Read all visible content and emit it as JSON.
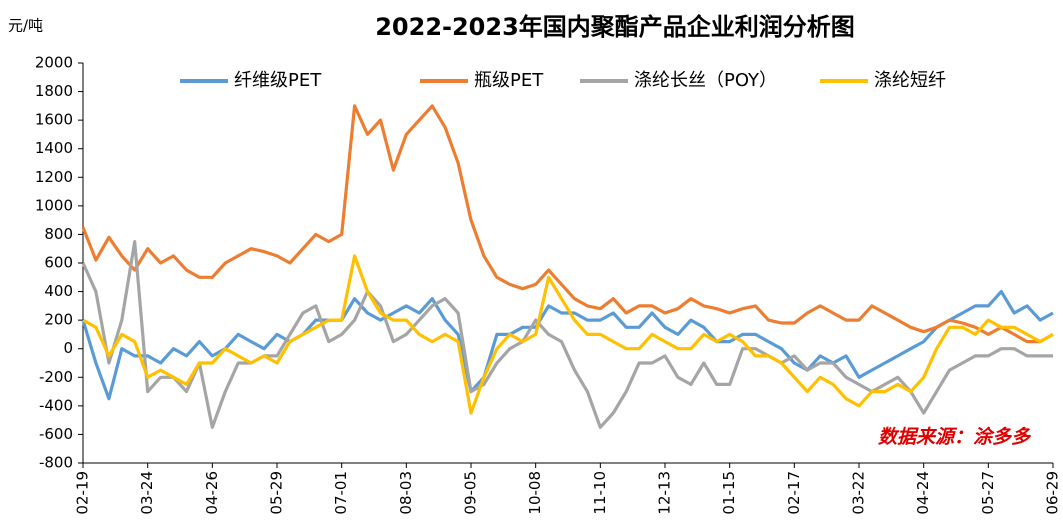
{
  "chart_data": {
    "type": "line",
    "title": "2022-2023年国内聚酯产品企业利润分析图",
    "y_label": "元/吨",
    "annotation": "数据来源：涂多多",
    "categories": [
      "02-19",
      null,
      null,
      null,
      null,
      "03-24",
      null,
      null,
      null,
      null,
      "04-26",
      null,
      null,
      null,
      null,
      "05-29",
      null,
      null,
      null,
      null,
      "07-01",
      null,
      null,
      null,
      null,
      "08-03",
      null,
      null,
      null,
      null,
      "09-05",
      null,
      null,
      null,
      null,
      "10-08",
      null,
      null,
      null,
      null,
      "11-10",
      null,
      null,
      null,
      null,
      "12-13",
      null,
      null,
      null,
      null,
      "01-15",
      null,
      null,
      null,
      null,
      "02-17",
      null,
      null,
      null,
      null,
      "03-22",
      null,
      null,
      null,
      null,
      "04-24",
      null,
      null,
      null,
      null,
      "05-27",
      null,
      null,
      null,
      null,
      "06-29"
    ],
    "series": [
      {
        "name": "纤维级PET",
        "color": "#5b9bd5",
        "values": [
          200,
          -100,
          -350,
          0,
          -50,
          -50,
          -100,
          0,
          -50,
          50,
          -50,
          0,
          100,
          50,
          0,
          100,
          50,
          100,
          200,
          200,
          200,
          350,
          250,
          200,
          250,
          300,
          250,
          350,
          200,
          100,
          -300,
          -200,
          100,
          100,
          150,
          150,
          300,
          250,
          250,
          200,
          200,
          250,
          150,
          150,
          250,
          150,
          100,
          200,
          150,
          50,
          50,
          100,
          100,
          50,
          0,
          -100,
          -150,
          -50,
          -100,
          -50,
          -200,
          -150,
          -100,
          -50,
          0,
          50,
          150,
          200,
          250,
          300,
          300,
          400,
          250,
          300,
          200,
          250
        ]
      },
      {
        "name": "瓶级PET",
        "color": "#ed7d31",
        "values": [
          850,
          620,
          780,
          650,
          550,
          700,
          600,
          650,
          550,
          500,
          500,
          600,
          650,
          700,
          680,
          650,
          600,
          700,
          800,
          750,
          800,
          1700,
          1500,
          1600,
          1250,
          1500,
          1600,
          1700,
          1550,
          1300,
          900,
          650,
          500,
          450,
          420,
          450,
          550,
          450,
          350,
          300,
          280,
          350,
          250,
          300,
          300,
          250,
          280,
          350,
          300,
          280,
          250,
          280,
          300,
          200,
          180,
          180,
          250,
          300,
          250,
          200,
          200,
          300,
          250,
          200,
          150,
          120,
          150,
          200,
          180,
          150,
          100,
          150,
          100,
          50,
          50,
          100
        ]
      },
      {
        "name": "涤纶长丝（POY）",
        "color": "#a5a5a5",
        "values": [
          600,
          400,
          -100,
          200,
          750,
          -300,
          -200,
          -200,
          -300,
          -100,
          -550,
          -300,
          -100,
          -100,
          -50,
          -50,
          100,
          250,
          300,
          50,
          100,
          200,
          400,
          300,
          50,
          100,
          200,
          300,
          350,
          250,
          -300,
          -250,
          -100,
          0,
          50,
          200,
          100,
          50,
          -150,
          -300,
          -550,
          -450,
          -300,
          -100,
          -100,
          -50,
          -200,
          -250,
          -100,
          -250,
          -250,
          0,
          0,
          -50,
          -100,
          -50,
          -150,
          -100,
          -100,
          -200,
          -250,
          -300,
          -250,
          -200,
          -300,
          -450,
          -300,
          -150,
          -100,
          -50,
          -50,
          0,
          0,
          -50,
          -50,
          -50
        ]
      },
      {
        "name": "涤纶短纤",
        "color": "#ffc000",
        "values": [
          200,
          150,
          -50,
          100,
          50,
          -200,
          -150,
          -200,
          -250,
          -100,
          -100,
          0,
          -50,
          -100,
          -50,
          -100,
          50,
          100,
          150,
          200,
          200,
          650,
          400,
          250,
          200,
          200,
          100,
          50,
          100,
          50,
          -450,
          -200,
          0,
          100,
          50,
          100,
          500,
          350,
          200,
          100,
          100,
          50,
          0,
          0,
          100,
          50,
          0,
          0,
          100,
          50,
          100,
          50,
          -50,
          -50,
          -100,
          -200,
          -300,
          -200,
          -250,
          -350,
          -400,
          -300,
          -300,
          -250,
          -300,
          -200,
          0,
          150,
          150,
          100,
          200,
          150,
          150,
          100,
          50,
          100
        ]
      }
    ],
    "ylim": [
      -800,
      2000
    ],
    "yticks": [
      -800,
      -600,
      -400,
      -200,
      0,
      200,
      400,
      600,
      800,
      1000,
      1200,
      1400,
      1600,
      1800,
      2000
    ],
    "grid": false,
    "legend": "top"
  }
}
